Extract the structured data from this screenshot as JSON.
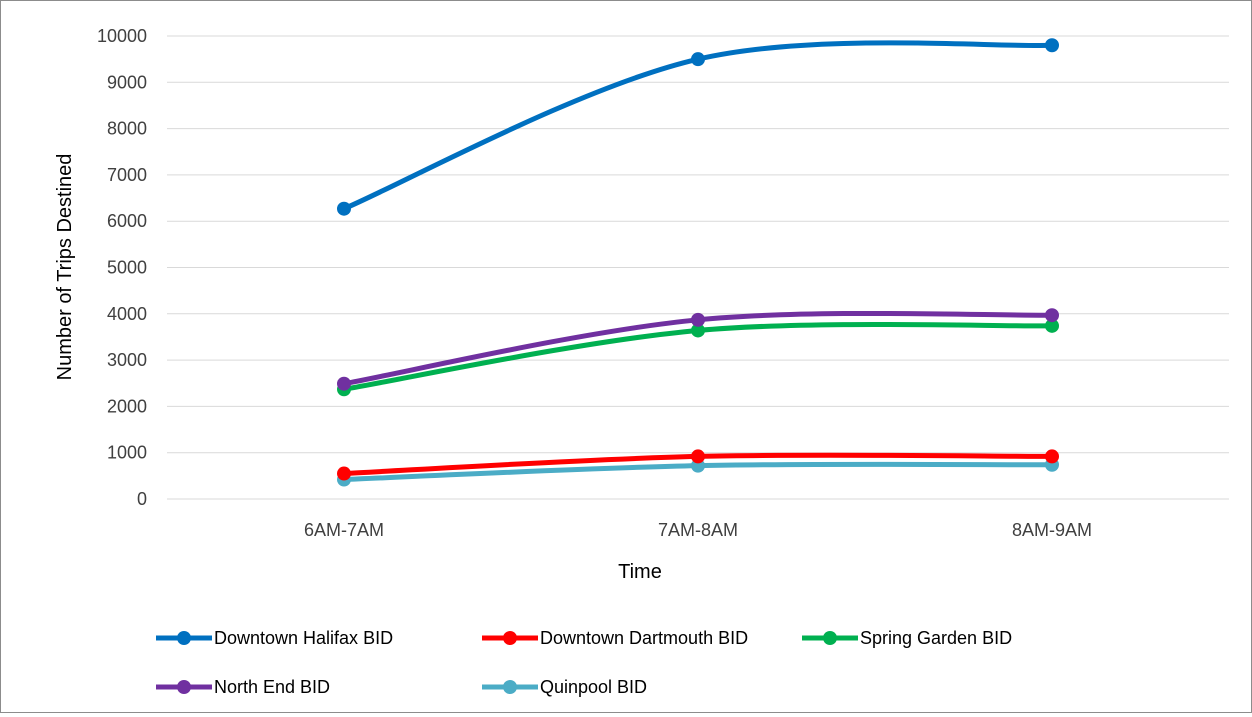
{
  "chart_data": {
    "type": "line",
    "title": "",
    "xlabel": "Time",
    "ylabel": "Number of Trips Destined",
    "categories": [
      "6AM-7AM",
      "7AM-8AM",
      "8AM-9AM"
    ],
    "ylim": [
      0,
      10000
    ],
    "yticks": [
      0,
      1000,
      2000,
      3000,
      4000,
      5000,
      6000,
      7000,
      8000,
      9000,
      10000
    ],
    "grid": true,
    "smooth": true,
    "legend_position": "bottom",
    "series": [
      {
        "name": "Downtown Halifax BID",
        "color": "#0070c0",
        "values": [
          6270,
          9500,
          9800
        ]
      },
      {
        "name": "Downtown Dartmouth BID",
        "color": "#ff0000",
        "values": [
          550,
          920,
          920
        ]
      },
      {
        "name": "Spring Garden BID",
        "color": "#00b050",
        "values": [
          2370,
          3640,
          3740
        ]
      },
      {
        "name": "North End BID",
        "color": "#7030a0",
        "values": [
          2490,
          3870,
          3970
        ]
      },
      {
        "name": "Quinpool BID",
        "color": "#4bacc6",
        "values": [
          420,
          720,
          740
        ]
      }
    ]
  }
}
